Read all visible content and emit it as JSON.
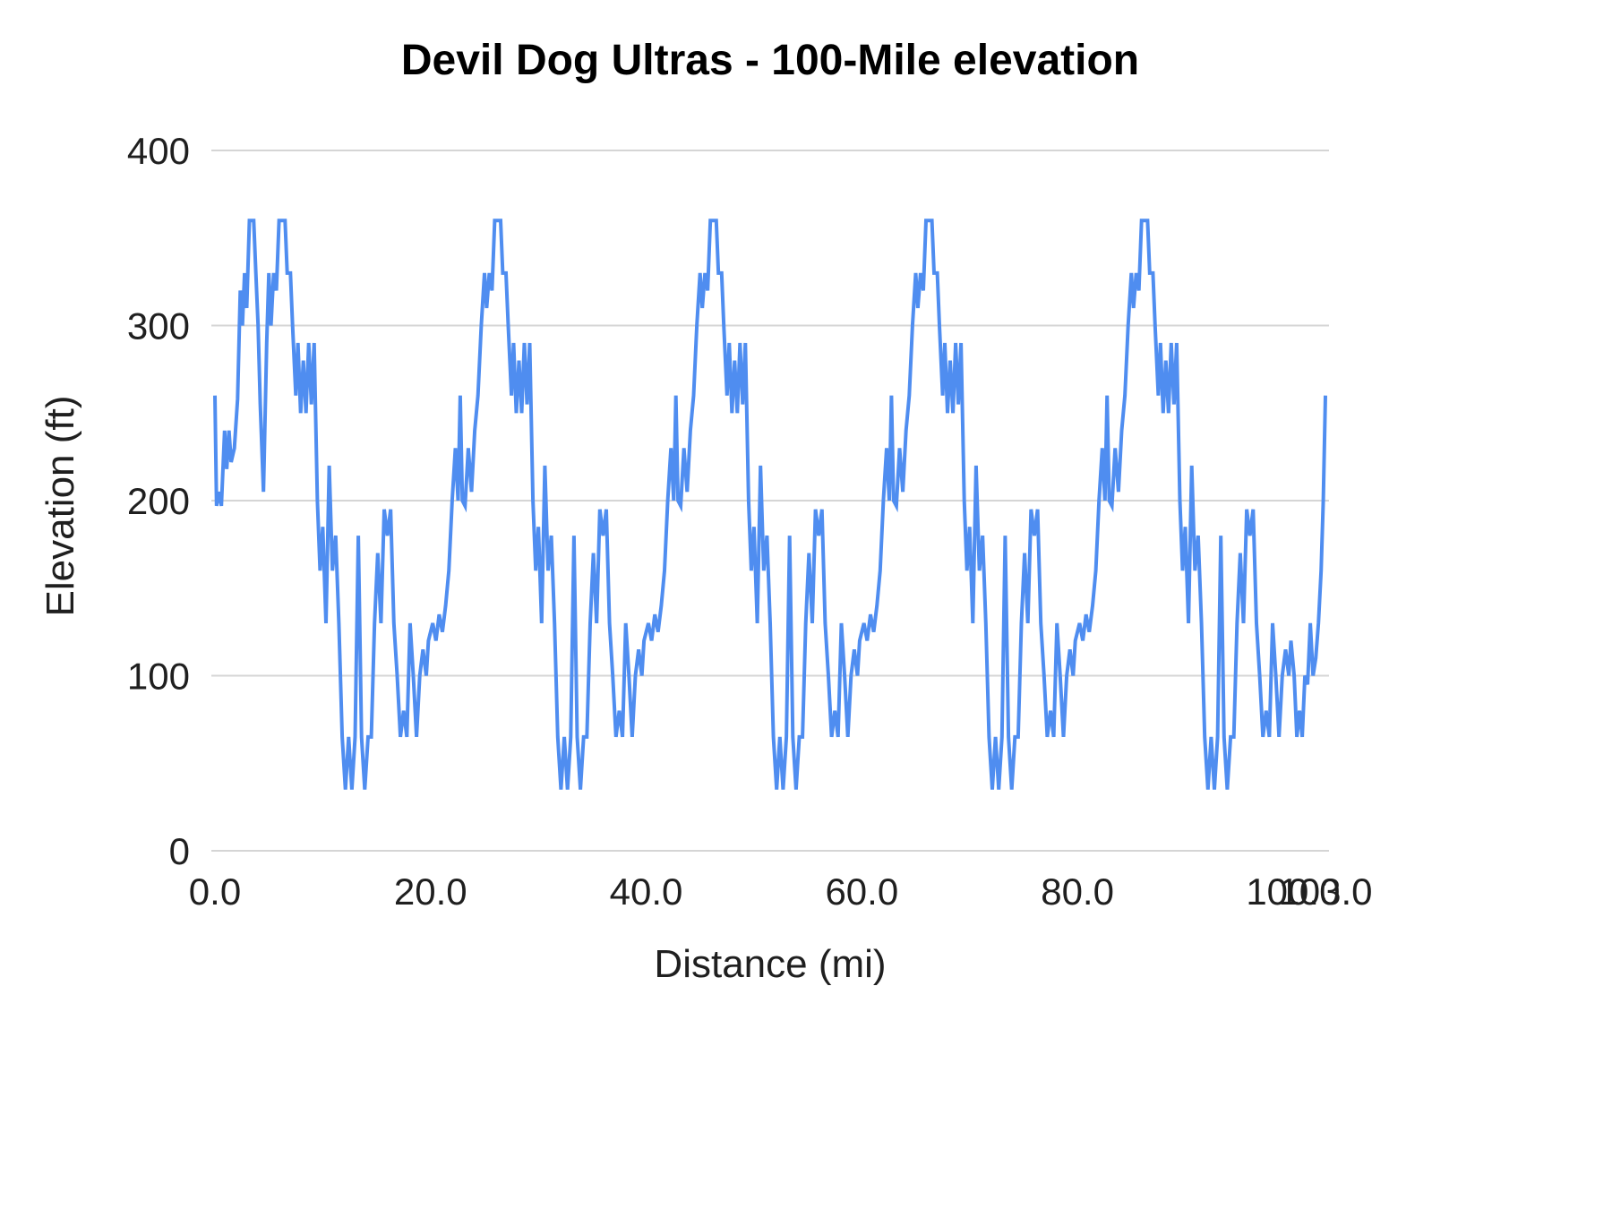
{
  "chart_data": {
    "type": "line",
    "title": "Devil Dog Ultras - 100-Mile elevation",
    "xlabel": "Distance (mi)",
    "ylabel": "Elevation (ft)",
    "xlim": [
      0,
      103
    ],
    "ylim": [
      0,
      400
    ],
    "grid": "horizontal-only",
    "legend": "none",
    "colors": {
      "line": "#4f8df0",
      "grid": "#d5d5d5",
      "text": "#1f1f1f"
    },
    "y_ticks": [
      {
        "value": 0,
        "label": "0"
      },
      {
        "value": 100,
        "label": "100"
      },
      {
        "value": 200,
        "label": "200"
      },
      {
        "value": 300,
        "label": "300"
      },
      {
        "value": 400,
        "label": "400"
      }
    ],
    "x_ticks": [
      {
        "value": 0,
        "label": "0.0"
      },
      {
        "value": 20,
        "label": "20.0"
      },
      {
        "value": 40,
        "label": "40.0"
      },
      {
        "value": 60,
        "label": "60.0"
      },
      {
        "value": 80,
        "label": "80.0"
      },
      {
        "value": 100,
        "label": "100.0"
      },
      {
        "value": 103,
        "label": "103.0"
      }
    ],
    "series": [
      {
        "name": "Elevation (ft)",
        "color": "#4f8df0",
        "first_lap_points": [
          [
            0,
            260
          ],
          [
            0.15,
            197
          ],
          [
            0.4,
            205
          ],
          [
            0.6,
            197
          ],
          [
            0.9,
            240
          ],
          [
            1.1,
            218
          ],
          [
            1.3,
            240
          ],
          [
            1.5,
            222
          ],
          [
            1.8,
            230
          ],
          [
            2.1,
            258
          ],
          [
            2.35,
            320
          ],
          [
            2.55,
            300
          ],
          [
            2.75,
            330
          ],
          [
            2.95,
            310
          ],
          [
            3.2,
            360
          ],
          [
            3.6,
            360
          ],
          [
            3.8,
            330
          ],
          [
            4,
            300
          ],
          [
            4.2,
            255
          ],
          [
            4.5,
            205
          ],
          [
            4.8,
            290
          ],
          [
            5,
            330
          ],
          [
            5.2,
            300
          ],
          [
            5.45,
            330
          ],
          [
            5.7,
            320
          ],
          [
            5.95,
            360
          ],
          [
            6.5,
            360
          ],
          [
            6.7,
            330
          ],
          [
            7,
            330
          ],
          [
            7.2,
            300
          ],
          [
            7.5,
            260
          ],
          [
            7.7,
            290
          ],
          [
            7.95,
            250
          ],
          [
            8.2,
            280
          ],
          [
            8.45,
            250
          ],
          [
            8.7,
            290
          ],
          [
            8.95,
            255
          ],
          [
            9.2,
            290
          ],
          [
            9.5,
            200
          ],
          [
            9.75,
            160
          ],
          [
            10,
            185
          ],
          [
            10.3,
            130
          ],
          [
            10.6,
            220
          ],
          [
            10.9,
            160
          ],
          [
            11.2,
            180
          ],
          [
            11.5,
            130
          ],
          [
            11.8,
            65
          ],
          [
            12.1,
            35
          ],
          [
            12.4,
            65
          ],
          [
            12.7,
            35
          ],
          [
            13,
            65
          ],
          [
            13.3,
            180
          ],
          [
            13.6,
            65
          ],
          [
            13.9,
            35
          ],
          [
            14.2,
            65
          ],
          [
            14.5,
            65
          ],
          [
            14.8,
            130
          ],
          [
            15.1,
            170
          ],
          [
            15.4,
            130
          ],
          [
            15.7,
            195
          ],
          [
            16,
            180
          ],
          [
            16.3,
            195
          ],
          [
            16.6,
            130
          ],
          [
            16.9,
            100
          ],
          [
            17.2,
            65
          ],
          [
            17.5,
            80
          ],
          [
            17.8,
            65
          ],
          [
            18.1,
            130
          ],
          [
            18.4,
            100
          ],
          [
            18.7,
            65
          ],
          [
            19,
            100
          ],
          [
            19.3,
            115
          ],
          [
            19.6,
            100
          ],
          [
            19.8,
            120
          ]
        ],
        "lap_start_miles": [
          20,
          40,
          60,
          80
        ],
        "repeated_lap_relative_points": [
          [
            0.2,
            130
          ],
          [
            0.5,
            120
          ],
          [
            0.8,
            135
          ],
          [
            1.1,
            125
          ],
          [
            1.4,
            140
          ],
          [
            1.7,
            160
          ],
          [
            2,
            200
          ],
          [
            2.3,
            230
          ],
          [
            2.55,
            200
          ],
          [
            2.75,
            260
          ],
          [
            2.95,
            200
          ],
          [
            3.2,
            197
          ],
          [
            3.5,
            230
          ],
          [
            3.8,
            205
          ],
          [
            4.1,
            240
          ],
          [
            4.4,
            260
          ],
          [
            4.7,
            300
          ],
          [
            5,
            330
          ],
          [
            5.2,
            310
          ],
          [
            5.45,
            330
          ],
          [
            5.7,
            320
          ],
          [
            5.95,
            360
          ],
          [
            6.5,
            360
          ],
          [
            6.7,
            330
          ],
          [
            7,
            330
          ],
          [
            7.2,
            300
          ],
          [
            7.5,
            260
          ],
          [
            7.7,
            290
          ],
          [
            7.95,
            250
          ],
          [
            8.2,
            280
          ],
          [
            8.45,
            250
          ],
          [
            8.7,
            290
          ],
          [
            8.95,
            255
          ],
          [
            9.2,
            290
          ],
          [
            9.5,
            200
          ],
          [
            9.75,
            160
          ],
          [
            10,
            185
          ],
          [
            10.3,
            130
          ],
          [
            10.6,
            220
          ],
          [
            10.9,
            160
          ],
          [
            11.2,
            180
          ],
          [
            11.5,
            130
          ],
          [
            11.8,
            65
          ],
          [
            12.1,
            35
          ],
          [
            12.4,
            65
          ],
          [
            12.7,
            35
          ],
          [
            13,
            65
          ],
          [
            13.3,
            180
          ],
          [
            13.6,
            65
          ],
          [
            13.9,
            35
          ],
          [
            14.2,
            65
          ],
          [
            14.5,
            65
          ],
          [
            14.8,
            130
          ],
          [
            15.1,
            170
          ],
          [
            15.4,
            130
          ],
          [
            15.7,
            195
          ],
          [
            16,
            180
          ],
          [
            16.3,
            195
          ],
          [
            16.6,
            130
          ],
          [
            16.9,
            100
          ],
          [
            17.2,
            65
          ],
          [
            17.5,
            80
          ],
          [
            17.8,
            65
          ],
          [
            18.1,
            130
          ],
          [
            18.4,
            100
          ],
          [
            18.7,
            65
          ],
          [
            19,
            100
          ],
          [
            19.3,
            115
          ],
          [
            19.6,
            100
          ],
          [
            19.8,
            120
          ]
        ],
        "tail_points": [
          [
            100.1,
            100
          ],
          [
            100.35,
            65
          ],
          [
            100.6,
            80
          ],
          [
            100.85,
            65
          ],
          [
            101.1,
            100
          ],
          [
            101.35,
            95
          ],
          [
            101.6,
            130
          ],
          [
            101.85,
            100
          ],
          [
            102.1,
            110
          ],
          [
            102.35,
            130
          ],
          [
            102.6,
            160
          ],
          [
            102.8,
            200
          ],
          [
            103,
            260
          ]
        ]
      }
    ]
  }
}
